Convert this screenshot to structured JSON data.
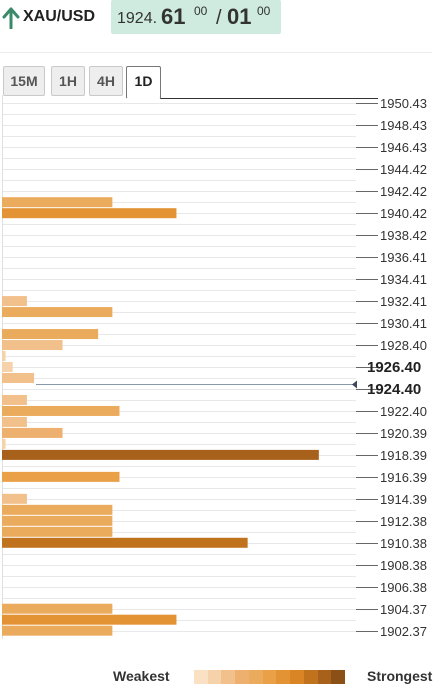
{
  "header": {
    "symbol": "XAU/USD",
    "price_base": "1924.",
    "price_main": "61",
    "price_sup1": "00",
    "price_slash": "/",
    "price_mid": "01",
    "price_sup2": "00",
    "arrow_color": "#3a8a6a",
    "price_box_color": "#cfeadf"
  },
  "tabs": [
    {
      "label": "15M",
      "active": false
    },
    {
      "label": "1H",
      "active": false
    },
    {
      "label": "4H",
      "active": false
    },
    {
      "label": "1D",
      "active": true
    }
  ],
  "chart_data": {
    "type": "bar",
    "orientation": "horizontal",
    "y_ticks": [
      "1950.43",
      "1948.43",
      "1946.43",
      "1944.42",
      "1942.42",
      "1940.42",
      "1938.42",
      "1936.41",
      "1934.41",
      "1932.41",
      "1930.41",
      "1928.40",
      "1926.40",
      "1924.40",
      "1922.40",
      "1920.39",
      "1918.39",
      "1916.39",
      "1914.39",
      "1912.38",
      "1910.38",
      "1908.38",
      "1906.38",
      "1904.37",
      "1902.37"
    ],
    "ylim": [
      1902.37,
      1950.43
    ],
    "current_price": 1924.4,
    "highlighted_ticks": [
      "1926.40",
      "1924.40"
    ],
    "bars": [
      {
        "price": 1941.4,
        "strength": 0.31,
        "level": 4
      },
      {
        "price": 1940.4,
        "strength": 0.49,
        "level": 6
      },
      {
        "price": 1932.4,
        "strength": 0.07,
        "level": 2
      },
      {
        "price": 1931.4,
        "strength": 0.31,
        "level": 4
      },
      {
        "price": 1929.4,
        "strength": 0.27,
        "level": 4
      },
      {
        "price": 1928.4,
        "strength": 0.17,
        "level": 2
      },
      {
        "price": 1927.4,
        "strength": 0.01,
        "level": 1
      },
      {
        "price": 1926.4,
        "strength": 0.03,
        "level": 1
      },
      {
        "price": 1925.4,
        "strength": 0.09,
        "level": 2
      },
      {
        "price": 1923.4,
        "strength": 0.07,
        "level": 2
      },
      {
        "price": 1922.4,
        "strength": 0.33,
        "level": 4
      },
      {
        "price": 1921.4,
        "strength": 0.07,
        "level": 2
      },
      {
        "price": 1920.4,
        "strength": 0.17,
        "level": 3
      },
      {
        "price": 1919.4,
        "strength": 0.01,
        "level": 1
      },
      {
        "price": 1918.4,
        "strength": 0.89,
        "level": 9
      },
      {
        "price": 1917.4,
        "strength": 0.0,
        "level": 0
      },
      {
        "price": 1916.4,
        "strength": 0.33,
        "level": 5
      },
      {
        "price": 1914.4,
        "strength": 0.07,
        "level": 2
      },
      {
        "price": 1913.4,
        "strength": 0.31,
        "level": 4
      },
      {
        "price": 1912.4,
        "strength": 0.31,
        "level": 4
      },
      {
        "price": 1911.4,
        "strength": 0.31,
        "level": 4
      },
      {
        "price": 1910.4,
        "strength": 0.69,
        "level": 8
      },
      {
        "price": 1904.4,
        "strength": 0.31,
        "level": 4
      },
      {
        "price": 1903.4,
        "strength": 0.49,
        "level": 6
      },
      {
        "price": 1902.4,
        "strength": 0.31,
        "level": 4
      }
    ],
    "palette": [
      "#fbe1c4",
      "#f6d2ab",
      "#f2c08b",
      "#eeb06e",
      "#ebab5c",
      "#e9a047",
      "#e39334",
      "#d98526",
      "#c0731c",
      "#a8611a",
      "#8b5016"
    ]
  },
  "legend": {
    "weakest": "Weakest",
    "strongest": "Strongest"
  }
}
